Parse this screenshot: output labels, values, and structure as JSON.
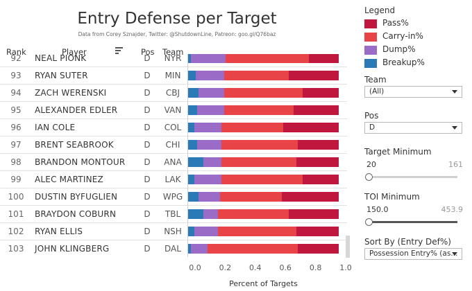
{
  "header": {
    "title": "Entry Defense per Target",
    "subtitle": "Data from Corey Sznajder, Twitter: @ShutdownLine, Patreon: goo.gl/Q76baz"
  },
  "columns": {
    "rank": "Rank",
    "player": "Player",
    "pos": "Pos",
    "team": "Team"
  },
  "colors": {
    "pass": "#c0173f",
    "carry_in": "#e84447",
    "dump": "#9b6bc8",
    "breakup": "#2b7ab8"
  },
  "chart_data": {
    "type": "bar",
    "orientation": "horizontal",
    "stacked": true,
    "title": "Entry Defense per Target",
    "xlabel": "Percent of Targets",
    "xlim": [
      0,
      1.0
    ],
    "xticks": [
      "0.0",
      "0.2",
      "0.4",
      "0.6",
      "0.8",
      "1.0"
    ],
    "categories": [
      "NEAL PIONK",
      "RYAN SUTER",
      "ZACH WERENSKI",
      "ALEXANDER EDLER",
      "IAN COLE",
      "BRENT SEABROOK",
      "BRANDON MONTOUR",
      "ALEC MARTINEZ",
      "DUSTIN BYFUGLIEN",
      "BRAYDON COBURN",
      "RYAN ELLIS",
      "JOHN KLINGBERG"
    ],
    "series": [
      {
        "name": "Breakup%",
        "values": [
          0.02,
          0.05,
          0.07,
          0.06,
          0.04,
          0.06,
          0.1,
          0.04,
          0.07,
          0.1,
          0.04,
          0.02
        ]
      },
      {
        "name": "Dump%",
        "values": [
          0.23,
          0.19,
          0.17,
          0.18,
          0.18,
          0.16,
          0.12,
          0.18,
          0.14,
          0.1,
          0.16,
          0.11
        ]
      },
      {
        "name": "Carry-in%",
        "values": [
          0.55,
          0.43,
          0.52,
          0.46,
          0.41,
          0.51,
          0.5,
          0.54,
          0.41,
          0.47,
          0.52,
          0.6
        ]
      },
      {
        "name": "Pass%",
        "values": [
          0.2,
          0.33,
          0.24,
          0.3,
          0.37,
          0.27,
          0.28,
          0.24,
          0.38,
          0.33,
          0.28,
          0.27
        ]
      }
    ]
  },
  "rows": [
    {
      "rank": "92",
      "player": "NEAL PIONK",
      "pos": "D",
      "team": "NYR"
    },
    {
      "rank": "93",
      "player": "RYAN SUTER",
      "pos": "D",
      "team": "MIN"
    },
    {
      "rank": "94",
      "player": "ZACH WERENSKI",
      "pos": "D",
      "team": "CBJ"
    },
    {
      "rank": "95",
      "player": "ALEXANDER EDLER",
      "pos": "D",
      "team": "VAN"
    },
    {
      "rank": "96",
      "player": "IAN COLE",
      "pos": "D",
      "team": "COL"
    },
    {
      "rank": "97",
      "player": "BRENT SEABROOK",
      "pos": "D",
      "team": "CHI"
    },
    {
      "rank": "98",
      "player": "BRANDON MONTOUR",
      "pos": "D",
      "team": "ANA"
    },
    {
      "rank": "99",
      "player": "ALEC MARTINEZ",
      "pos": "D",
      "team": "LAK"
    },
    {
      "rank": "100",
      "player": "DUSTIN BYFUGLIEN",
      "pos": "D",
      "team": "WPG"
    },
    {
      "rank": "101",
      "player": "BRAYDON COBURN",
      "pos": "D",
      "team": "TBL"
    },
    {
      "rank": "102",
      "player": "RYAN ELLIS",
      "pos": "D",
      "team": "NSH"
    },
    {
      "rank": "103",
      "player": "JOHN KLINGBERG",
      "pos": "D",
      "team": "DAL"
    }
  ],
  "legend": {
    "title": "Legend",
    "items": [
      {
        "label": "Pass%",
        "color": "#c0173f"
      },
      {
        "label": "Carry-in%",
        "color": "#e84447"
      },
      {
        "label": "Dump%",
        "color": "#9b6bc8"
      },
      {
        "label": "Breakup%",
        "color": "#2b7ab8"
      }
    ]
  },
  "filters": {
    "team": {
      "label": "Team",
      "value": "(All)"
    },
    "pos": {
      "label": "Pos",
      "value": "D"
    },
    "target_min": {
      "label": "Target Minimum",
      "value": "20",
      "max": "161",
      "fraction": 0.0
    },
    "toi_min": {
      "label": "TOI Minimum",
      "value": "150.0",
      "max": "453.9",
      "fraction": 0.0
    },
    "sort_by": {
      "label": "Sort By (Entry Def%)",
      "value": "Possession Entry% (as..."
    }
  }
}
